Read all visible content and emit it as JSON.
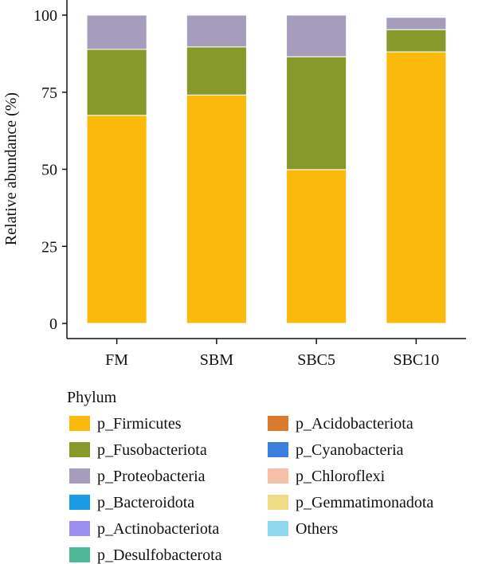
{
  "chart_data": {
    "type": "bar",
    "stacked": true,
    "categories": [
      "FM",
      "SBM",
      "SBC5",
      "SBC10"
    ],
    "ylabel": "Relative abundance (%)",
    "xlabel": "",
    "ylim": [
      0,
      100
    ],
    "yticks": [
      0,
      25,
      50,
      75,
      100
    ],
    "grid": false,
    "legend_title": "Phylum",
    "legend_position": "bottom",
    "series": [
      {
        "name": "p_Firmicutes",
        "color": "#FBB90C",
        "values": [
          67.5,
          74.1,
          49.9,
          88.1
        ]
      },
      {
        "name": "p_Fusobacteriota",
        "color": "#86992A",
        "values": [
          21.4,
          15.6,
          36.6,
          7.2
        ]
      },
      {
        "name": "p_Proteobacteria",
        "color": "#A69DBD",
        "values": [
          11.1,
          10.3,
          13.5,
          4.0
        ]
      },
      {
        "name": "p_Bacteroidota",
        "color": "#1A9CE4",
        "values": [
          0.0,
          0.0,
          0.0,
          0.2
        ]
      },
      {
        "name": "p_Actinobacteriota",
        "color": "#9D8FF0",
        "values": [
          0.0,
          0.0,
          0.0,
          0.1
        ]
      },
      {
        "name": "p_Desulfobacterota",
        "color": "#4FB896",
        "values": [
          0.0,
          0.0,
          0.0,
          0.1
        ]
      },
      {
        "name": "p_Acidobacteriota",
        "color": "#D97B2D",
        "values": [
          0.0,
          0.0,
          0.0,
          0.0
        ]
      },
      {
        "name": "p_Cyanobacteria",
        "color": "#3A7FDE",
        "values": [
          0.0,
          0.0,
          0.0,
          0.0
        ]
      },
      {
        "name": "p_Chloroflexi",
        "color": "#F7C1A8",
        "values": [
          0.0,
          0.0,
          0.0,
          0.0
        ]
      },
      {
        "name": "p_Gemmatimonadota",
        "color": "#F0DC84",
        "values": [
          0.0,
          0.0,
          0.0,
          0.0
        ]
      },
      {
        "name": "Others",
        "color": "#8FD9EE",
        "values": [
          0.0,
          0.0,
          0.0,
          0.3
        ]
      }
    ]
  }
}
